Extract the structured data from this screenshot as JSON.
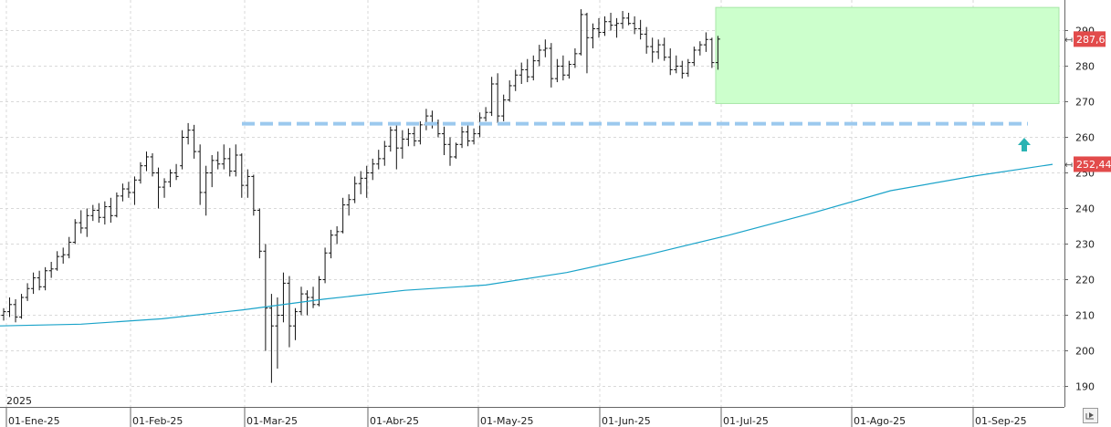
{
  "chart_data": {
    "type": "ohlc",
    "year_label": "2025",
    "x_tick_labels": [
      "01-Ene-25",
      "01-Feb-25",
      "01-Mar-25",
      "01-Abr-25",
      "01-May-25",
      "01-Jun-25",
      "01-Jul-25",
      "01-Ago-25",
      "01-Sep-25"
    ],
    "y_ticks": [
      190,
      200,
      210,
      220,
      230,
      240,
      250,
      260,
      270,
      280,
      290
    ],
    "ylim": [
      184,
      297
    ],
    "last_price": 287.6,
    "last_price_label": "287,6",
    "ma_value": 252.44,
    "ma_label": "252,44",
    "resistance_level": 263.8,
    "consolidation_range": {
      "low": 269.5,
      "high": 296.5,
      "start": "02-Jul-25",
      "end": "24-Sep-25"
    },
    "moving_average": [
      207.0,
      207.5,
      209.0,
      211.5,
      214.5,
      217.0,
      218.5,
      222.0,
      227.0,
      232.5,
      238.5,
      245.0,
      249.0,
      252.4
    ],
    "bars": [
      [
        210.0,
        212.0,
        208.5,
        211.0
      ],
      [
        211.0,
        215.0,
        209.5,
        213.0
      ],
      [
        213.0,
        214.5,
        208.0,
        209.5
      ],
      [
        209.5,
        216.0,
        209.0,
        215.0
      ],
      [
        215.0,
        219.0,
        214.0,
        217.5
      ],
      [
        217.5,
        222.0,
        216.0,
        220.5
      ],
      [
        220.5,
        222.5,
        217.0,
        218.0
      ],
      [
        218.0,
        223.5,
        217.0,
        222.5
      ],
      [
        222.5,
        225.0,
        220.5,
        223.0
      ],
      [
        223.0,
        228.0,
        222.5,
        226.5
      ],
      [
        226.5,
        229.0,
        224.5,
        227.0
      ],
      [
        227.0,
        232.0,
        226.0,
        230.5
      ],
      [
        230.5,
        237.0,
        230.0,
        236.0
      ],
      [
        236.0,
        239.5,
        233.0,
        234.5
      ],
      [
        234.5,
        240.0,
        232.0,
        238.0
      ],
      [
        238.0,
        241.0,
        236.5,
        239.5
      ],
      [
        239.5,
        241.5,
        236.0,
        237.5
      ],
      [
        237.5,
        242.0,
        235.5,
        240.5
      ],
      [
        240.5,
        243.0,
        236.0,
        238.0
      ],
      [
        238.0,
        244.5,
        237.5,
        243.5
      ],
      [
        243.5,
        247.0,
        242.0,
        245.5
      ],
      [
        245.5,
        247.5,
        243.0,
        244.5
      ],
      [
        244.5,
        249.0,
        241.0,
        248.0
      ],
      [
        248.0,
        253.0,
        247.0,
        252.0
      ],
      [
        252.0,
        256.0,
        250.5,
        254.5
      ],
      [
        254.5,
        255.5,
        249.0,
        250.0
      ],
      [
        250.0,
        251.5,
        240.0,
        246.0
      ],
      [
        246.0,
        248.5,
        243.0,
        247.5
      ],
      [
        247.5,
        251.0,
        246.0,
        250.0
      ],
      [
        250.0,
        252.5,
        248.0,
        249.0
      ],
      [
        252.0,
        262.0,
        251.0,
        260.0
      ],
      [
        260.0,
        264.0,
        258.0,
        262.0
      ],
      [
        262.0,
        263.5,
        254.0,
        256.0
      ],
      [
        256.0,
        258.0,
        241.0,
        244.5
      ],
      [
        244.5,
        252.0,
        238.0,
        250.0
      ],
      [
        250.0,
        255.0,
        246.0,
        253.5
      ],
      [
        253.5,
        256.0,
        251.0,
        252.5
      ],
      [
        252.5,
        258.0,
        251.0,
        254.0
      ],
      [
        254.0,
        257.0,
        249.0,
        250.5
      ],
      [
        250.5,
        258.0,
        249.0,
        255.0
      ],
      [
        255.0,
        255.5,
        243.0,
        246.5
      ],
      [
        246.5,
        251.0,
        243.0,
        249.0
      ],
      [
        249.0,
        249.5,
        238.0,
        239.5
      ],
      [
        239.5,
        240.0,
        226.0,
        228.0
      ],
      [
        228.0,
        230.0,
        200.0,
        212.0
      ],
      [
        212.0,
        216.0,
        191.0,
        207.0
      ],
      [
        207.0,
        215.0,
        195.0,
        210.0
      ],
      [
        210.0,
        222.0,
        208.0,
        219.0
      ],
      [
        219.0,
        221.0,
        201.0,
        207.0
      ],
      [
        207.0,
        212.0,
        203.0,
        211.0
      ],
      [
        211.0,
        218.0,
        210.0,
        216.0
      ],
      [
        216.0,
        217.0,
        210.0,
        215.0
      ],
      [
        215.0,
        218.0,
        212.0,
        213.0
      ],
      [
        213.0,
        221.0,
        212.5,
        220.0
      ],
      [
        220.0,
        229.0,
        219.0,
        227.5
      ],
      [
        227.5,
        234.0,
        226.0,
        232.5
      ],
      [
        232.5,
        235.0,
        230.0,
        233.5
      ],
      [
        233.5,
        243.0,
        233.0,
        241.0
      ],
      [
        241.0,
        244.0,
        238.0,
        242.5
      ],
      [
        242.5,
        249.0,
        241.5,
        247.0
      ],
      [
        247.0,
        250.5,
        244.0,
        248.5
      ],
      [
        248.5,
        252.0,
        243.0,
        250.0
      ],
      [
        250.0,
        254.0,
        248.0,
        252.5
      ],
      [
        252.5,
        256.5,
        251.0,
        254.0
      ],
      [
        254.0,
        259.0,
        252.0,
        257.5
      ],
      [
        257.5,
        263.0,
        256.0,
        262.0
      ],
      [
        262.0,
        263.5,
        251.0,
        257.0
      ],
      [
        257.0,
        262.0,
        254.0,
        259.5
      ],
      [
        259.5,
        262.5,
        257.5,
        261.0
      ],
      [
        261.0,
        263.0,
        257.5,
        259.0
      ],
      [
        259.0,
        264.5,
        258.0,
        263.5
      ],
      [
        263.5,
        268.0,
        262.0,
        266.0
      ],
      [
        266.0,
        267.5,
        262.5,
        264.0
      ],
      [
        264.0,
        265.0,
        260.0,
        261.0
      ],
      [
        261.0,
        263.0,
        255.0,
        258.0
      ],
      [
        258.0,
        260.0,
        252.0,
        254.5
      ],
      [
        254.5,
        258.5,
        254.0,
        258.0
      ],
      [
        258.0,
        263.0,
        257.0,
        261.5
      ],
      [
        261.5,
        263.5,
        257.5,
        259.0
      ],
      [
        259.0,
        262.5,
        258.0,
        261.0
      ],
      [
        261.0,
        267.0,
        260.0,
        265.5
      ],
      [
        265.5,
        268.5,
        264.5,
        267.0
      ],
      [
        267.0,
        277.0,
        266.0,
        275.0
      ],
      [
        275.0,
        278.0,
        264.0,
        266.0
      ],
      [
        266.0,
        272.0,
        264.5,
        270.5
      ],
      [
        270.5,
        276.0,
        270.0,
        274.5
      ],
      [
        274.5,
        279.0,
        273.0,
        277.5
      ],
      [
        277.5,
        281.0,
        275.0,
        279.0
      ],
      [
        279.0,
        282.0,
        275.5,
        277.0
      ],
      [
        277.0,
        283.0,
        276.0,
        281.5
      ],
      [
        281.5,
        286.0,
        280.0,
        284.5
      ],
      [
        284.5,
        287.5,
        282.5,
        285.0
      ],
      [
        285.0,
        286.5,
        274.0,
        276.5
      ],
      [
        276.5,
        282.0,
        275.5,
        280.0
      ],
      [
        280.0,
        283.0,
        276.0,
        277.5
      ],
      [
        277.5,
        281.5,
        276.5,
        280.5
      ],
      [
        280.5,
        285.0,
        279.5,
        283.5
      ],
      [
        283.5,
        296.0,
        283.0,
        294.5
      ],
      [
        294.5,
        295.0,
        278.0,
        288.0
      ],
      [
        288.0,
        292.0,
        285.0,
        290.5
      ],
      [
        290.5,
        293.5,
        288.0,
        289.5
      ],
      [
        289.5,
        294.0,
        288.5,
        292.5
      ],
      [
        292.5,
        295.0,
        290.0,
        291.5
      ],
      [
        291.5,
        293.5,
        288.0,
        292.0
      ],
      [
        292.0,
        295.5,
        290.5,
        293.5
      ],
      [
        293.5,
        295.0,
        291.5,
        292.0
      ],
      [
        292.0,
        294.0,
        289.0,
        290.5
      ],
      [
        290.5,
        293.0,
        287.5,
        289.0
      ],
      [
        289.0,
        291.0,
        283.5,
        285.5
      ],
      [
        285.5,
        288.0,
        281.0,
        284.0
      ],
      [
        284.0,
        287.5,
        282.0,
        286.0
      ],
      [
        286.0,
        288.0,
        281.5,
        282.5
      ],
      [
        282.5,
        285.0,
        277.5,
        279.0
      ],
      [
        279.0,
        283.0,
        278.0,
        280.0
      ],
      [
        280.0,
        281.5,
        276.5,
        278.0
      ],
      [
        278.0,
        282.0,
        277.0,
        281.0
      ],
      [
        281.0,
        285.5,
        280.0,
        284.5
      ],
      [
        284.5,
        287.0,
        283.0,
        286.0
      ],
      [
        286.0,
        289.5,
        284.0,
        287.5
      ],
      [
        287.5,
        288.0,
        279.5,
        281.0
      ],
      [
        281.0,
        288.5,
        279.0,
        287.6
      ]
    ]
  }
}
